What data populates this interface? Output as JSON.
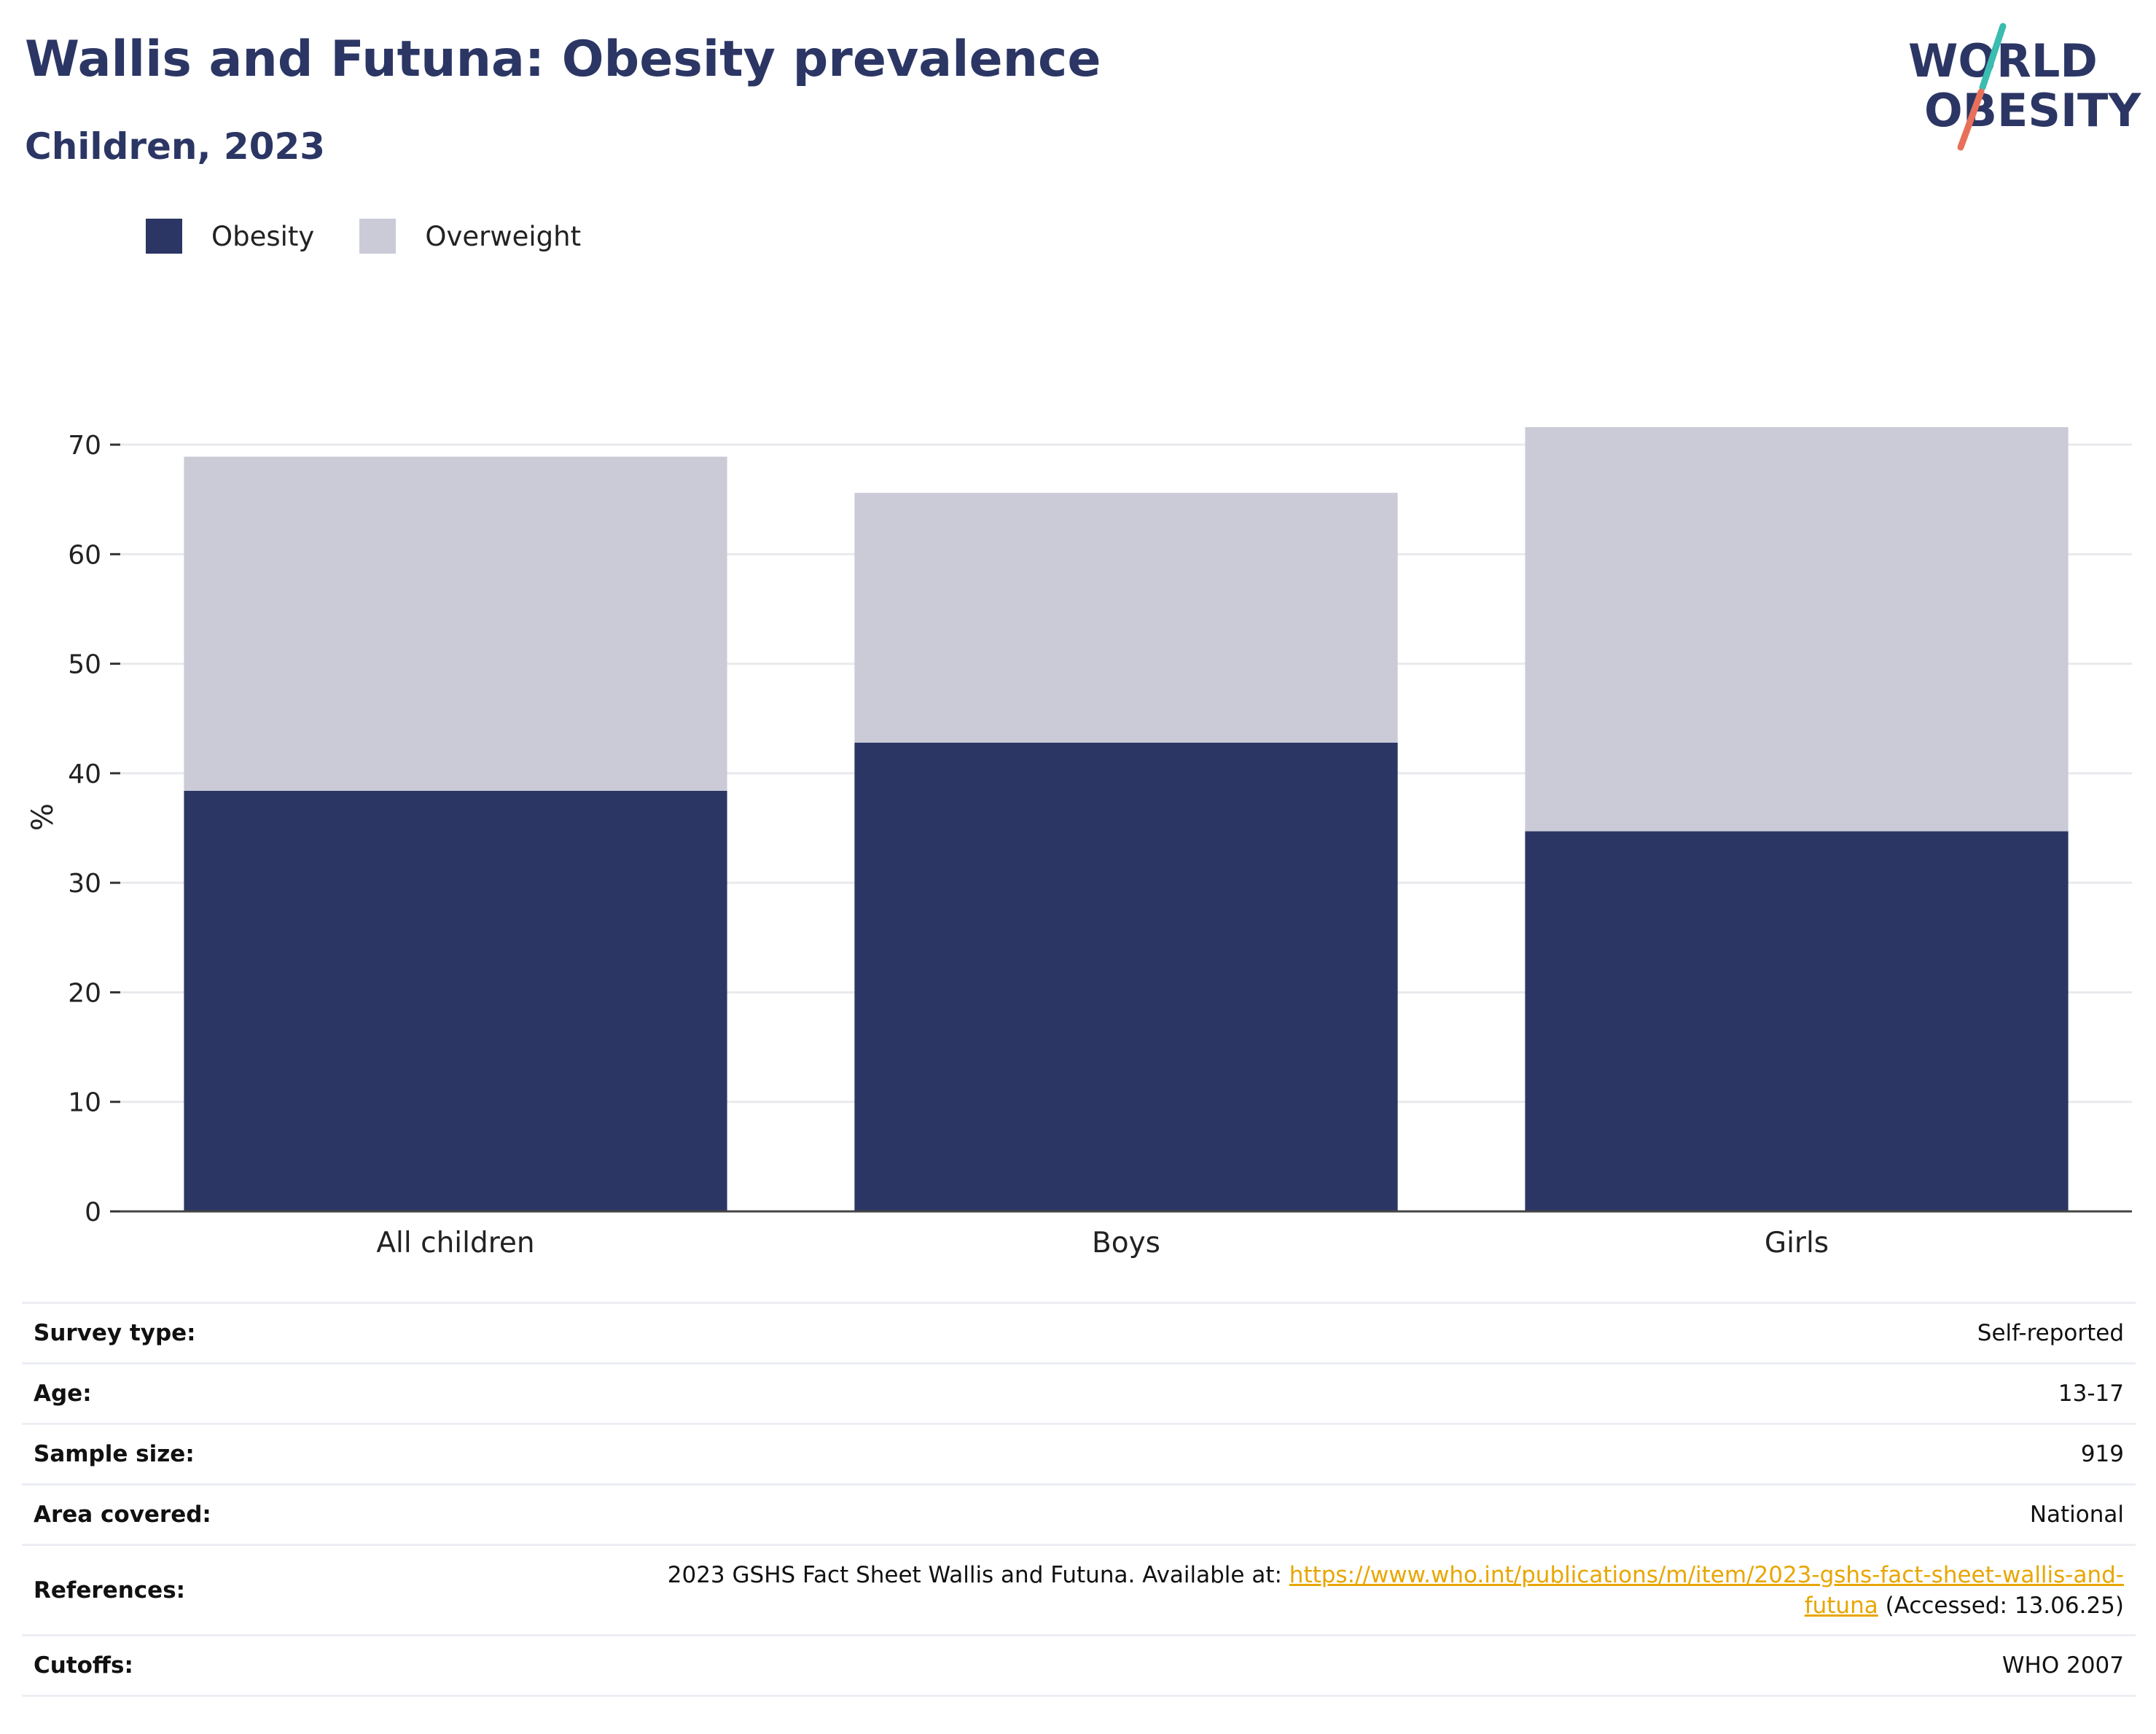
{
  "header": {
    "title": "Wallis and Futuna: Obesity prevalence",
    "subtitle": "Children, 2023"
  },
  "logo": {
    "line1": "WORLD",
    "line2": "OBESITY",
    "icon": "world-obesity-logo-icon"
  },
  "colors": {
    "obesity": "#2b3664",
    "overweight": "#cacbd7",
    "title": "#2b3664",
    "link": "#e8a600",
    "logo_teal": "#3bbcb0",
    "logo_coral": "#e8705a"
  },
  "legend": [
    {
      "label": "Obesity",
      "color": "#2b3664"
    },
    {
      "label": "Overweight",
      "color": "#cacbd7"
    }
  ],
  "chart_data": {
    "type": "bar",
    "stacked": true,
    "categories": [
      "All children",
      "Boys",
      "Girls"
    ],
    "series": [
      {
        "name": "Obesity",
        "values": [
          38.4,
          42.8,
          34.7
        ]
      },
      {
        "name": "Overweight",
        "values": [
          30.5,
          22.8,
          36.9
        ]
      }
    ],
    "ylabel": "%",
    "ylim": [
      0,
      72
    ],
    "yticks": [
      0,
      10,
      20,
      30,
      40,
      50,
      60,
      70
    ],
    "grid": true,
    "legend_position": "top-left"
  },
  "info": {
    "survey_type": {
      "label": "Survey type:",
      "value": "Self-reported"
    },
    "age": {
      "label": "Age:",
      "value": "13-17"
    },
    "sample_size": {
      "label": "Sample size:",
      "value": "919"
    },
    "area_covered": {
      "label": "Area covered:",
      "value": "National"
    },
    "references": {
      "label": "References:",
      "text_before": "2023 GSHS Fact Sheet Wallis and Futuna. Available at: ",
      "link_line1": "https://www.who.int/publications/m/item/2023-gshs-fact-sheet-wallis-and-",
      "link_line2": "futuna",
      "text_after": " (Accessed: 13.06.25)"
    },
    "cutoffs": {
      "label": "Cutoffs:",
      "value": "WHO 2007"
    }
  }
}
